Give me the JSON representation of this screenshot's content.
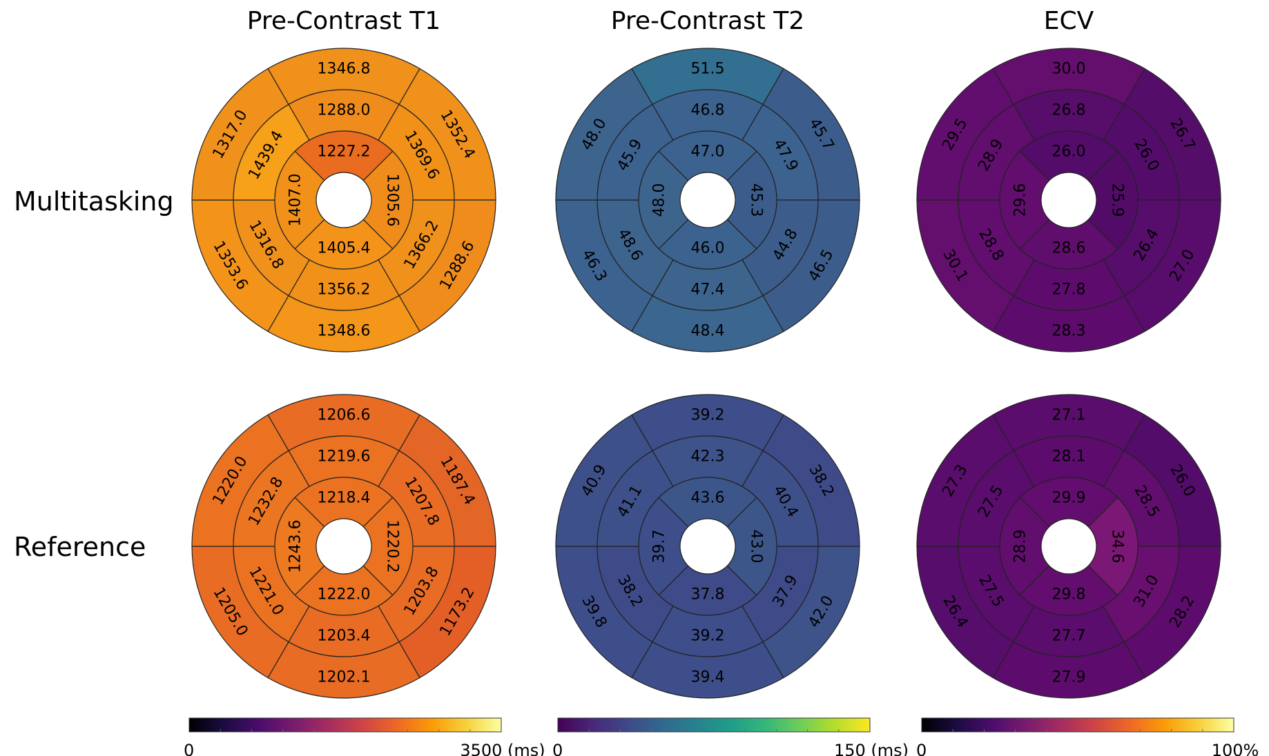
{
  "columns": [
    "Pre-Contrast T1",
    "Pre-Contrast T2",
    "ECV"
  ],
  "rows": [
    "Multitasking",
    "Reference"
  ],
  "maps": [
    {
      "row": "Multitasking",
      "column": "Pre-Contrast T1",
      "outer": [
        "1346.8",
        "1352.4",
        "1288.6",
        "1348.6",
        "1353.6",
        "1317.0"
      ],
      "middle": [
        "1288.0",
        "1369.6",
        "1366.2",
        "1356.2",
        "1316.8",
        "1439.4"
      ],
      "inner": [
        "1227.2",
        "1305.6",
        "1405.4",
        "1407.0"
      ],
      "colors": {
        "outer": [
          "#f0911c",
          "#f0911c",
          "#ef8c1c",
          "#f3961a",
          "#f39319",
          "#f0911c"
        ],
        "middle": [
          "#ef8c1c",
          "#f29117",
          "#f0911c",
          "#f29119",
          "#f0911c",
          "#f7a019"
        ],
        "inner": [
          "#ea6c20",
          "#ef8c1c",
          "#f39319",
          "#f29119"
        ]
      }
    },
    {
      "row": "Multitasking",
      "column": "Pre-Contrast T2",
      "outer": [
        "51.5",
        "45.7",
        "46.5",
        "48.4",
        "46.3",
        "48.0"
      ],
      "middle": [
        "46.8",
        "47.9",
        "44.8",
        "47.4",
        "48.6",
        "45.9"
      ],
      "inner": [
        "47.0",
        "45.3",
        "46.0",
        "48.0"
      ],
      "colors": {
        "outer": [
          "#336f91",
          "#3c5d8c",
          "#3c5d8c",
          "#3a6690",
          "#3c628f",
          "#3d648d"
        ],
        "middle": [
          "#3c628f",
          "#3c628f",
          "#3c5d8c",
          "#3d648d",
          "#3d648d",
          "#3c628f"
        ],
        "inner": [
          "#3c628f",
          "#3c5d8c",
          "#3c628f",
          "#3d648d"
        ]
      }
    },
    {
      "row": "Multitasking",
      "column": "ECV",
      "outer": [
        "30.0",
        "26.7",
        "27.0",
        "28.3",
        "30.1",
        "29.5"
      ],
      "middle": [
        "26.8",
        "26.0",
        "26.4",
        "27.8",
        "28.8",
        "28.9"
      ],
      "inner": [
        "26.0",
        "25.9",
        "28.6",
        "29.6"
      ],
      "colors": {
        "outer": [
          "#640e6e",
          "#550d6a",
          "#580c6c",
          "#5d0c6e",
          "#640e6e",
          "#620e6e"
        ],
        "middle": [
          "#570e6b",
          "#530c69",
          "#560d6b",
          "#5d0c6e",
          "#610e6e",
          "#610e6e"
        ],
        "inner": [
          "#530c69",
          "#520c68",
          "#5f0e6d",
          "#630e6f"
        ]
      }
    },
    {
      "row": "Reference",
      "column": "Pre-Contrast T1",
      "outer": [
        "1206.6",
        "1187.4",
        "1173.2",
        "1202.1",
        "1205.0",
        "1220.0"
      ],
      "middle": [
        "1219.6",
        "1207.8",
        "1203.8",
        "1203.4",
        "1221.0",
        "1232.8"
      ],
      "inner": [
        "1218.4",
        "1220.2",
        "1222.0",
        "1243.6"
      ],
      "colors": {
        "outer": [
          "#e96c24",
          "#e46626",
          "#e35f26",
          "#e96c24",
          "#e96c24",
          "#eb7221"
        ],
        "middle": [
          "#eb7221",
          "#e96c24",
          "#e96c24",
          "#e96c24",
          "#eb7221",
          "#ec7521"
        ],
        "inner": [
          "#eb7221",
          "#eb7221",
          "#eb7221",
          "#ed7920"
        ]
      }
    },
    {
      "row": "Reference",
      "column": "Pre-Contrast T2",
      "outer": [
        "39.2",
        "38.2",
        "42.0",
        "39.4",
        "39.8",
        "40.9"
      ],
      "middle": [
        "42.3",
        "40.4",
        "37.9",
        "39.2",
        "38.2",
        "41.1"
      ],
      "inner": [
        "43.6",
        "43.0",
        "37.8",
        "39.7"
      ],
      "colors": {
        "outer": [
          "#3d4e8a",
          "#3f4b89",
          "#3d5389",
          "#3d4e8a",
          "#3d4e8a",
          "#3d5089"
        ],
        "middle": [
          "#3d5389",
          "#3d5089",
          "#3f4b89",
          "#3d4e8a",
          "#3f4b89",
          "#3d5089"
        ],
        "inner": [
          "#3c5689",
          "#3c5689",
          "#3f4a88",
          "#3d4e8a"
        ]
      }
    },
    {
      "row": "Reference",
      "column": "ECV",
      "outer": [
        "27.1",
        "26.0",
        "28.2",
        "27.9",
        "26.4",
        "27.3"
      ],
      "middle": [
        "28.1",
        "28.5",
        "31.0",
        "27.7",
        "27.5",
        "27.5"
      ],
      "inner": [
        "29.9",
        "34.6",
        "29.8",
        "28.9"
      ],
      "colors": {
        "outer": [
          "#5a0d6c",
          "#530c69",
          "#5d0c6e",
          "#5d0c6e",
          "#560d6b",
          "#5a0d6c"
        ],
        "middle": [
          "#5d0c6e",
          "#610e6e",
          "#680f70",
          "#5a0d6c",
          "#5a0d6c",
          "#5a0d6c"
        ],
        "inner": [
          "#630e6f",
          "#7b1774",
          "#630e6f",
          "#610e6e"
        ]
      }
    }
  ],
  "colorbars": [
    {
      "name": "T1",
      "min_label": "0",
      "max_label": "3500 (ms)",
      "min": 0,
      "max": 3500,
      "stops": [
        "#000004",
        "#1b0c41",
        "#4a0c6b",
        "#781c6d",
        "#a52c60",
        "#cf4446",
        "#ed6925",
        "#fb9b06",
        "#f7d13d",
        "#fcffa4"
      ]
    },
    {
      "name": "T2",
      "min_label": "0",
      "max_label": "150 (ms)",
      "min": 0,
      "max": 150,
      "stops": [
        "#440154",
        "#482878",
        "#3e4989",
        "#31688e",
        "#26828e",
        "#1f9e89",
        "#35b779",
        "#6ece58",
        "#b5de2b",
        "#fde725"
      ]
    },
    {
      "name": "ECV",
      "min_label": "0",
      "max_label": "100%",
      "min": 0,
      "max": 100,
      "stops": [
        "#000004",
        "#1b0c41",
        "#4a0c6b",
        "#781c6d",
        "#a52c60",
        "#cf4446",
        "#ed6925",
        "#fb9b06",
        "#f7d13d",
        "#fcffa4"
      ]
    }
  ]
}
